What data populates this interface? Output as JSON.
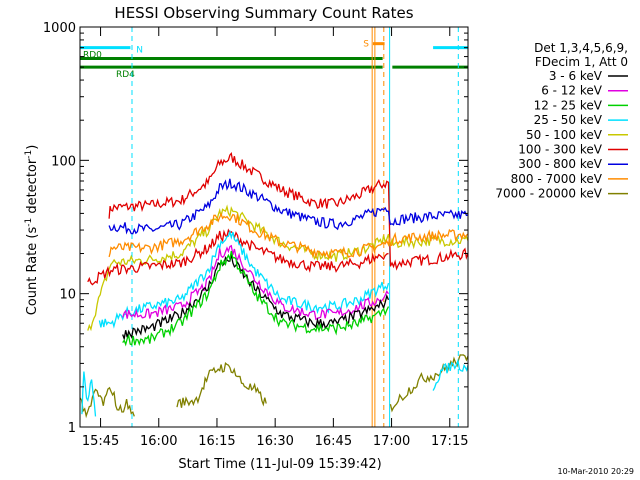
{
  "chart_data": {
    "type": "line",
    "title": "HESSI Observing Summary Count Rates",
    "xlabel": "Start Time (11-Jul-09 15:39:42)",
    "ylabel_main": "Count Rate (s",
    "ylabel_sup1": "-1",
    "ylabel_mid": " detector",
    "ylabel_sup2": "-1",
    "ylabel_end": ")",
    "yscale": "log",
    "ylim": [
      1,
      1000
    ],
    "xlim_min": [
      0,
      100
    ],
    "y_ticks": [
      {
        "value": 1,
        "label": "1"
      },
      {
        "value": 10,
        "label": "10"
      },
      {
        "value": 100,
        "label": "100"
      },
      {
        "value": 1000,
        "label": "1000"
      }
    ],
    "x_ticks": [
      {
        "value": 5.3,
        "label": "15:45"
      },
      {
        "value": 20.3,
        "label": "16:00"
      },
      {
        "value": 35.3,
        "label": "16:15"
      },
      {
        "value": 50.3,
        "label": "16:30"
      },
      {
        "value": 65.3,
        "label": "16:45"
      },
      {
        "value": 80.3,
        "label": "17:00"
      },
      {
        "value": 95.3,
        "label": "17:15"
      }
    ],
    "legend": {
      "header": [
        "Det 1,3,4,5,6,9,",
        "FDecim 1, Att 0"
      ],
      "placement": "right",
      "entries": [
        {
          "label": "3 - 6 keV",
          "color": "#000000"
        },
        {
          "label": "6 - 12 keV",
          "color": "#e000e0"
        },
        {
          "label": "12 - 25 keV",
          "color": "#00d000"
        },
        {
          "label": "25 - 50 keV",
          "color": "#00e0ff"
        },
        {
          "label": "50 - 100 keV",
          "color": "#c8c800"
        },
        {
          "label": "100 - 300 keV",
          "color": "#e00000"
        },
        {
          "label": "300 - 800 keV",
          "color": "#0000e0"
        },
        {
          "label": "800 - 7000 keV",
          "color": "#ff8c00"
        },
        {
          "label": "7000 - 20000 keV",
          "color": "#808000"
        }
      ]
    },
    "flags": [
      {
        "label": "N",
        "color": "#00e0ff",
        "y": 700,
        "segments": [
          [
            0,
            13
          ],
          [
            91,
            100
          ]
        ]
      },
      {
        "label": "RD0",
        "color": "#008000",
        "y": 580,
        "segments": [
          [
            0,
            78
          ]
        ]
      },
      {
        "label": "RD4",
        "color": "#008000",
        "y": 500,
        "segments": [
          [
            0,
            78
          ],
          [
            80.5,
            100
          ]
        ]
      },
      {
        "label": "S",
        "color": "#ff8c00",
        "y": 750,
        "segments": [
          [
            75.5,
            78.5
          ]
        ]
      }
    ],
    "vlines": [
      {
        "x": 13.4,
        "color": "#00e0ff",
        "dashed": true
      },
      {
        "x": 75.3,
        "color": "#ff8c00",
        "dashed": false
      },
      {
        "x": 76.0,
        "color": "#ff8c00",
        "dashed": false
      },
      {
        "x": 78.3,
        "color": "#ff8c00",
        "dashed": true
      },
      {
        "x": 79.8,
        "color": "#00e0ff",
        "dashed": false
      },
      {
        "x": 97.5,
        "color": "#00e0ff",
        "dashed": true
      }
    ],
    "series": [
      {
        "color": "#e00000",
        "x": [
          7.5,
          8,
          18,
          26,
          33,
          36,
          39,
          45,
          52,
          60,
          66,
          72,
          77,
          79.5,
          80,
          82,
          90,
          100
        ],
        "y": [
          40,
          44,
          46,
          50,
          68,
          95,
          105,
          80,
          60,
          48,
          47,
          55,
          65,
          68,
          16,
          17,
          18,
          20
        ]
      },
      {
        "color": "#0000e0",
        "x": [
          7.5,
          8,
          18,
          26,
          33,
          36,
          39,
          45,
          52,
          60,
          66,
          72,
          77,
          79.5,
          80,
          82,
          90,
          100
        ],
        "y": [
          30,
          32,
          30,
          33,
          45,
          62,
          68,
          55,
          42,
          35,
          33,
          37,
          42,
          45,
          34,
          36,
          38,
          39
        ]
      },
      {
        "color": "#c8c800",
        "x": [
          2,
          8,
          18,
          26,
          33,
          36,
          39,
          45,
          52,
          60,
          66,
          72,
          77,
          79.5,
          80,
          82,
          90,
          100
        ],
        "y": [
          5,
          17,
          18,
          20,
          30,
          40,
          42,
          32,
          24,
          20,
          19,
          21,
          24,
          27,
          23,
          24,
          25,
          25
        ]
      },
      {
        "color": "#ff8c00",
        "x": [
          7.5,
          8,
          18,
          26,
          33,
          36,
          39,
          45,
          52,
          60,
          66,
          72,
          77,
          79.5,
          80,
          82,
          90,
          100
        ],
        "y": [
          20,
          22,
          22,
          25,
          33,
          38,
          39,
          30,
          24,
          21,
          20,
          21,
          23,
          24,
          25,
          26,
          27,
          28
        ]
      },
      {
        "color": "#e00000",
        "x": [
          2,
          8,
          18,
          26,
          33,
          36,
          39,
          45,
          52,
          60,
          66,
          72,
          77,
          79.5
        ],
        "y": [
          12,
          15,
          16,
          17,
          22,
          27,
          28,
          22,
          18,
          16,
          16,
          17,
          19,
          20
        ]
      },
      {
        "color": "#00e0ff",
        "x": [
          5,
          8,
          11,
          18,
          26,
          33,
          36,
          39,
          45,
          52,
          60,
          66,
          72,
          77,
          79.5
        ],
        "y": [
          6,
          6,
          7,
          8,
          9,
          15,
          24,
          28,
          15,
          9,
          8,
          8,
          9,
          11,
          12
        ]
      },
      {
        "color": "#e000e0",
        "x": [
          11,
          18,
          26,
          33,
          36,
          39,
          45,
          52,
          60,
          66,
          72,
          77,
          79.5
        ],
        "y": [
          7,
          7,
          8,
          12,
          20,
          22,
          13,
          8,
          7,
          7,
          8,
          9,
          10
        ]
      },
      {
        "color": "#000000",
        "x": [
          11,
          18,
          26,
          33,
          36,
          39,
          45,
          52,
          60,
          66,
          72,
          77,
          79.5
        ],
        "y": [
          5,
          5.5,
          7,
          11,
          17,
          18,
          11,
          7,
          6,
          6,
          7,
          8,
          9
        ]
      },
      {
        "color": "#00d000",
        "x": [
          11,
          18,
          26,
          33,
          36,
          39,
          45,
          52,
          60,
          66,
          72,
          77,
          79.5
        ],
        "y": [
          4.5,
          4.5,
          6,
          10,
          16,
          20,
          10,
          6,
          5.5,
          5.5,
          6,
          7,
          8
        ]
      },
      {
        "color": "#808000",
        "x": [
          0,
          2,
          4,
          6,
          8,
          10,
          12,
          14
        ],
        "y": [
          1.6,
          1.2,
          1.9,
          1.5,
          2.0,
          1.3,
          1.5,
          1.2
        ]
      },
      {
        "color": "#808000",
        "x": [
          25,
          30,
          33,
          36,
          39,
          42,
          45,
          48
        ],
        "y": [
          1.5,
          1.6,
          2.4,
          2.8,
          2.8,
          2.1,
          1.9,
          1.5
        ]
      },
      {
        "color": "#00e0ff",
        "x": [
          0.5,
          1,
          2,
          3,
          4
        ],
        "y": [
          1.3,
          2.5,
          1.5,
          2.2,
          1.2
        ]
      },
      {
        "color": "#808000",
        "x": [
          80,
          84,
          88,
          92,
          96,
          100
        ],
        "y": [
          1.4,
          1.8,
          2.3,
          2.5,
          3.0,
          3.4
        ]
      },
      {
        "color": "#00e0ff",
        "x": [
          91,
          93,
          95,
          97,
          99,
          100
        ],
        "y": [
          2.0,
          2.6,
          2.8,
          3.0,
          2.8,
          2.9
        ]
      }
    ],
    "footer_date": "10-Mar-2010 20:29"
  }
}
